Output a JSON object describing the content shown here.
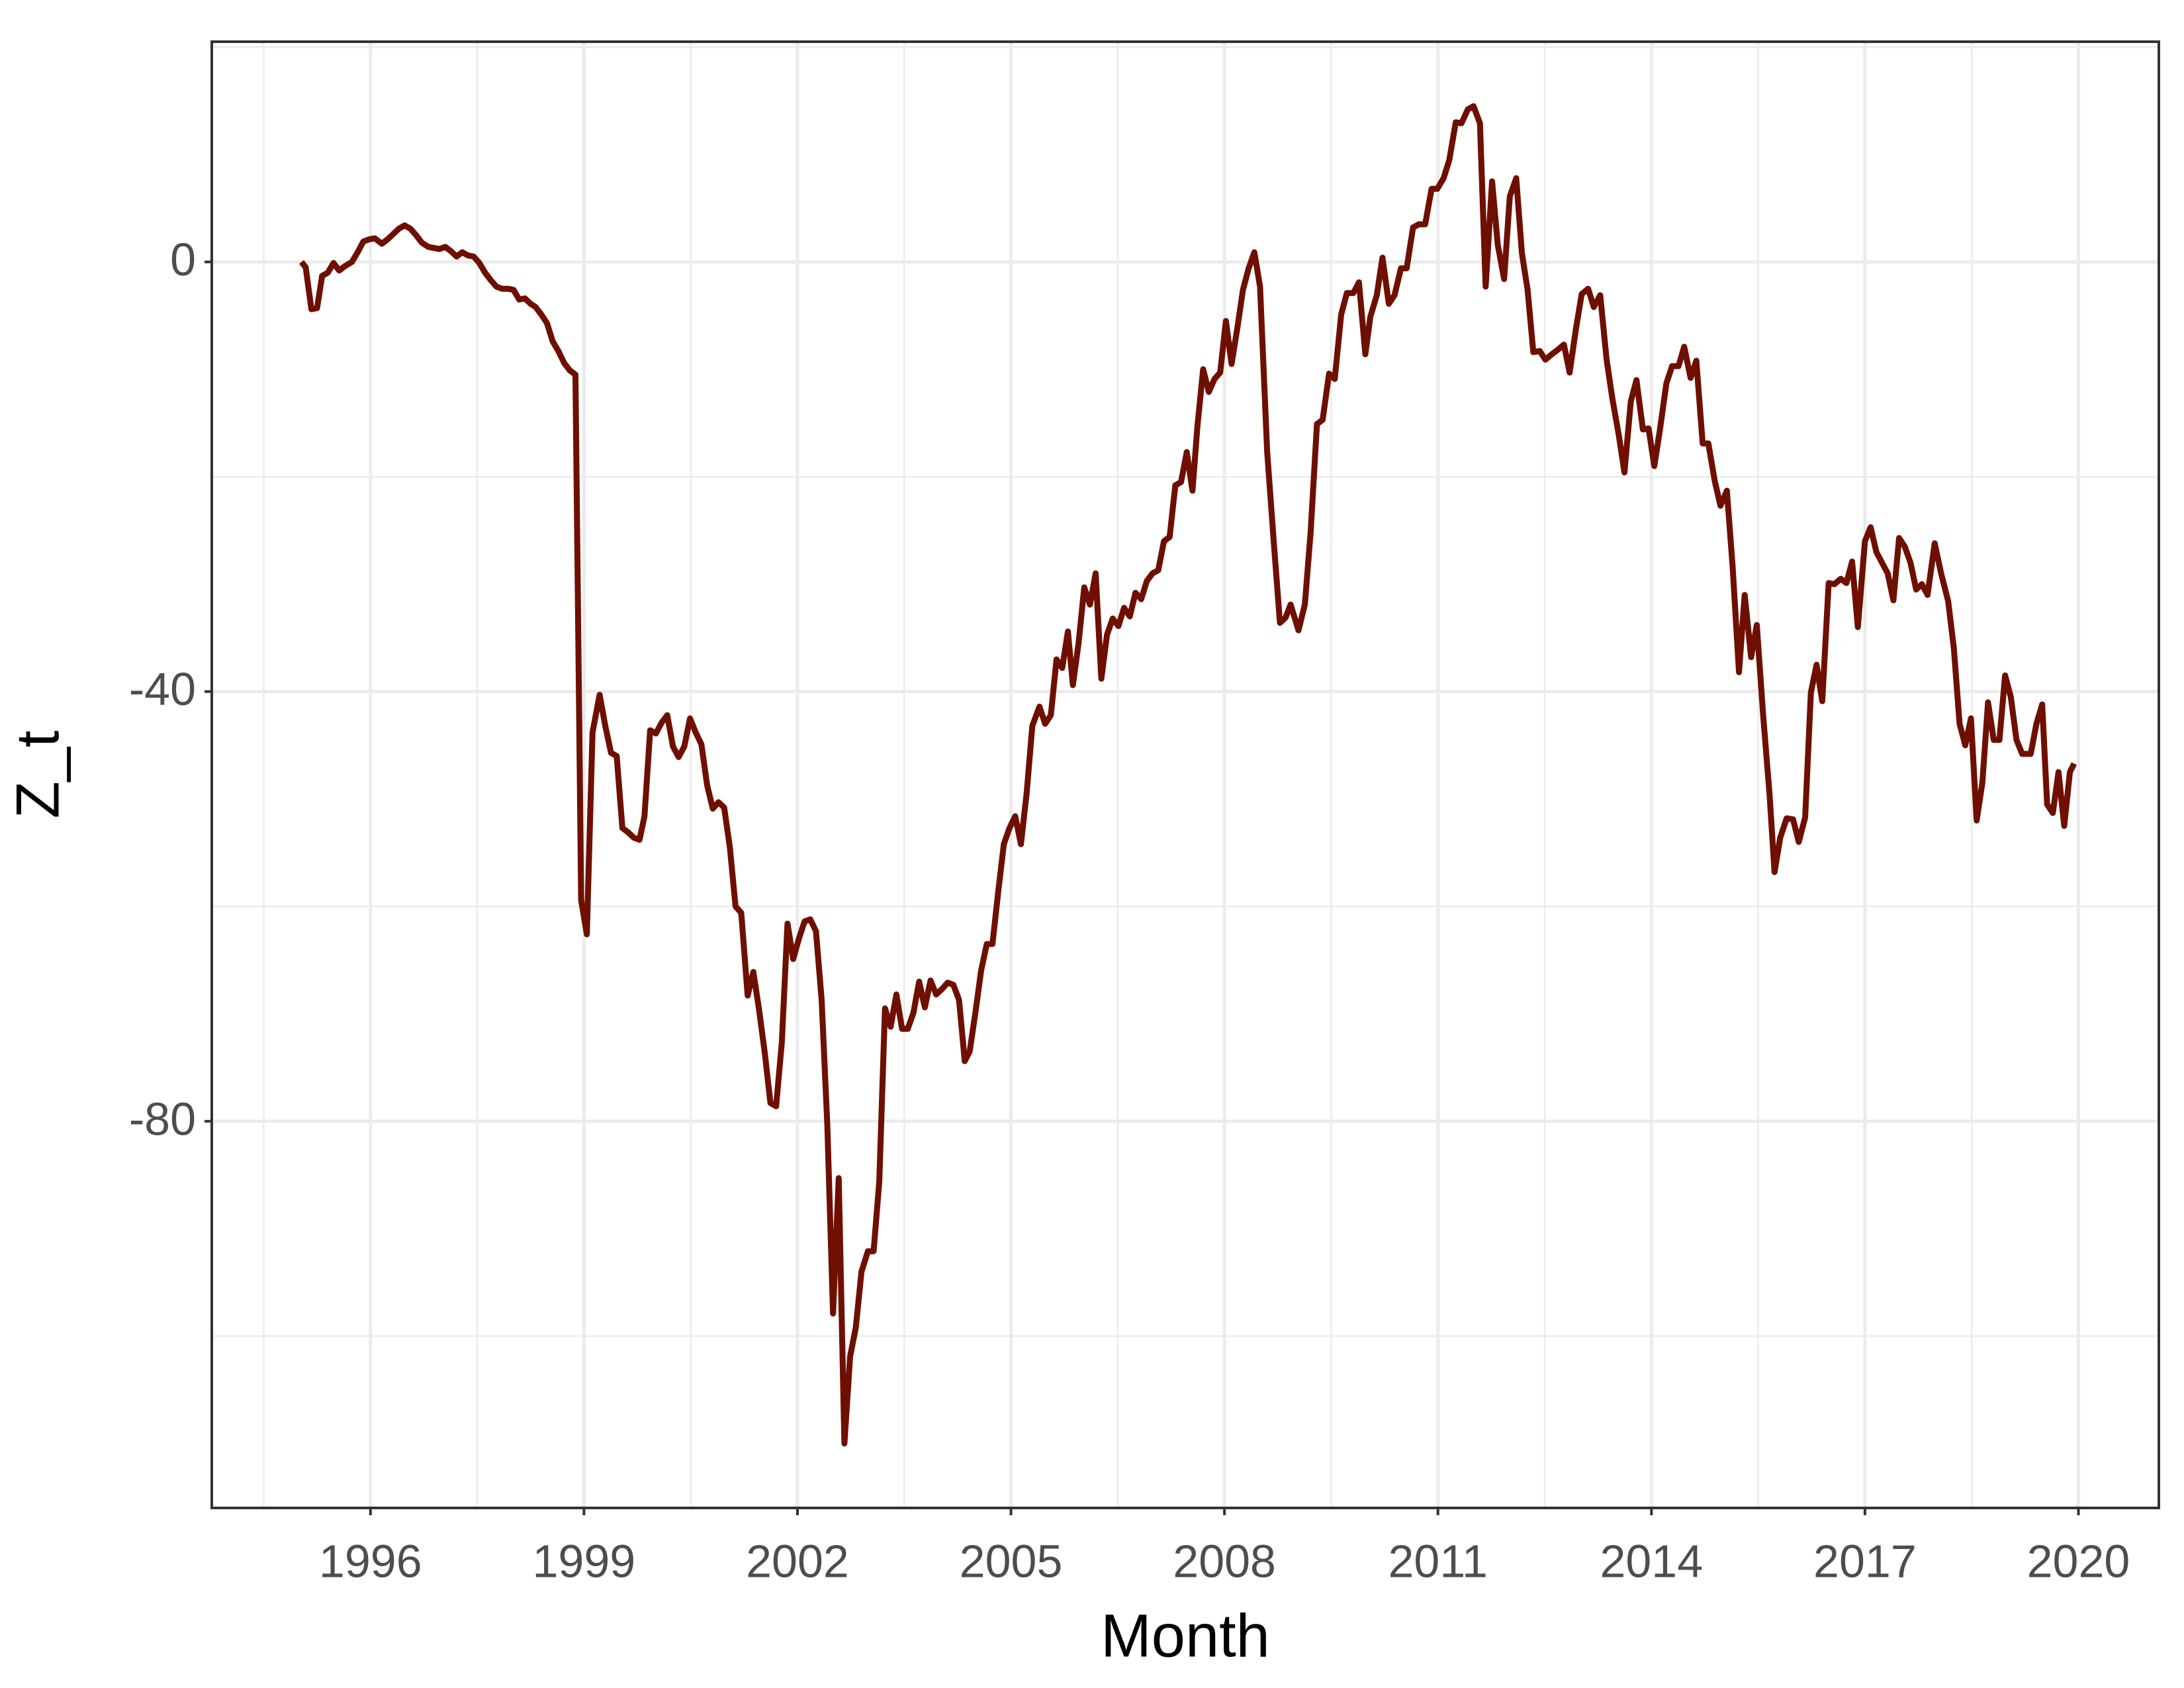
{
  "chart_data": {
    "type": "line",
    "x_label": "Month",
    "y_label": "Z_t",
    "color": "#6e0f00",
    "grid": true,
    "xlim": [
      1993.77,
      2021.13
    ],
    "xticks": [
      1996,
      1999,
      2002,
      2005,
      2008,
      2011,
      2014,
      2017,
      2020
    ],
    "ylim": [
      -116,
      20.5
    ],
    "yticks": [
      -80,
      -40,
      0
    ],
    "x": [
      1995.03,
      1995.09,
      1995.17,
      1995.25,
      1995.32,
      1995.4,
      1995.48,
      1995.56,
      1995.64,
      1995.74,
      1995.82,
      1995.9,
      1995.98,
      1996.06,
      1996.16,
      1996.24,
      1996.32,
      1996.4,
      1996.48,
      1996.56,
      1996.64,
      1996.72,
      1996.81,
      1996.89,
      1996.97,
      1997.05,
      1997.13,
      1997.21,
      1997.29,
      1997.37,
      1997.45,
      1997.53,
      1997.61,
      1997.69,
      1997.77,
      1997.85,
      1997.93,
      1998.01,
      1998.09,
      1998.17,
      1998.25,
      1998.32,
      1998.4,
      1998.48,
      1998.56,
      1998.64,
      1998.72,
      1998.8,
      1998.88,
      1998.96,
      1999.04,
      1999.12,
      1999.22,
      1999.3,
      1999.38,
      1999.46,
      1999.54,
      1999.62,
      1999.7,
      1999.78,
      1999.85,
      1999.93,
      2000.01,
      2000.09,
      2000.17,
      2000.25,
      2000.33,
      2000.41,
      2000.49,
      2000.57,
      2000.65,
      2000.73,
      2000.81,
      2000.89,
      2000.97,
      2001.05,
      2001.13,
      2001.21,
      2001.3,
      2001.38,
      2001.46,
      2001.54,
      2001.62,
      2001.7,
      2001.78,
      2001.86,
      2001.94,
      2002.02,
      2002.1,
      2002.18,
      2002.26,
      2002.34,
      2002.42,
      2002.5,
      2002.58,
      2002.66,
      2002.74,
      2002.82,
      2002.9,
      2002.99,
      2003.07,
      2003.15,
      2003.23,
      2003.31,
      2003.39,
      2003.47,
      2003.55,
      2003.63,
      2003.71,
      2003.79,
      2003.87,
      2003.95,
      2004.03,
      2004.11,
      2004.19,
      2004.27,
      2004.35,
      2004.42,
      2004.5,
      2004.58,
      2004.66,
      2004.74,
      2004.82,
      2004.9,
      2004.98,
      2005.06,
      2005.14,
      2005.22,
      2005.3,
      2005.4,
      2005.48,
      2005.56,
      2005.64,
      2005.72,
      2005.8,
      2005.87,
      2005.95,
      2006.03,
      2006.11,
      2006.19,
      2006.27,
      2006.35,
      2006.43,
      2006.51,
      2006.59,
      2006.67,
      2006.75,
      2006.83,
      2006.91,
      2006.99,
      2007.07,
      2007.15,
      2007.23,
      2007.31,
      2007.39,
      2007.47,
      2007.55,
      2007.62,
      2007.7,
      2007.78,
      2007.86,
      2007.94,
      2008.02,
      2008.1,
      2008.18,
      2008.26,
      2008.34,
      2008.42,
      2008.5,
      2008.6,
      2008.69,
      2008.78,
      2008.86,
      2008.93,
      2009.04,
      2009.13,
      2009.21,
      2009.3,
      2009.38,
      2009.47,
      2009.55,
      2009.64,
      2009.72,
      2009.81,
      2009.89,
      2009.98,
      2010.05,
      2010.14,
      2010.22,
      2010.31,
      2010.39,
      2010.48,
      2010.56,
      2010.65,
      2010.73,
      2010.82,
      2010.91,
      2010.99,
      2011.08,
      2011.16,
      2011.25,
      2011.33,
      2011.42,
      2011.5,
      2011.59,
      2011.67,
      2011.76,
      2011.84,
      2011.93,
      2012.01,
      2012.1,
      2012.18,
      2012.26,
      2012.34,
      2012.43,
      2012.51,
      2012.6,
      2012.68,
      2012.77,
      2012.85,
      2012.94,
      2013.02,
      2013.11,
      2013.19,
      2013.28,
      2013.37,
      2013.45,
      2013.54,
      2013.62,
      2013.71,
      2013.79,
      2013.88,
      2013.96,
      2014.04,
      2014.12,
      2014.21,
      2014.29,
      2014.38,
      2014.46,
      2014.55,
      2014.63,
      2014.72,
      2014.8,
      2014.89,
      2014.97,
      2015.06,
      2015.14,
      2015.23,
      2015.31,
      2015.4,
      2015.48,
      2015.57,
      2015.66,
      2015.73,
      2015.81,
      2015.9,
      2015.99,
      2016.07,
      2016.16,
      2016.24,
      2016.32,
      2016.4,
      2016.49,
      2016.57,
      2016.66,
      2016.74,
      2016.82,
      2016.9,
      2017.0,
      2017.08,
      2017.16,
      2017.32,
      2017.4,
      2017.48,
      2017.56,
      2017.64,
      2017.72,
      2017.8,
      2017.88,
      2017.98,
      2018.07,
      2018.17,
      2018.25,
      2018.33,
      2018.41,
      2018.49,
      2018.57,
      2018.65,
      2018.73,
      2018.81,
      2018.89,
      2018.97,
      2019.05,
      2019.13,
      2019.21,
      2019.33,
      2019.41,
      2019.49,
      2019.56,
      2019.64,
      2019.72,
      2019.8,
      2019.88,
      2019.94
    ],
    "values": [
      0,
      -0.5,
      -4.4,
      -4.3,
      -1.3,
      -1.0,
      -0.1,
      -0.8,
      -0.4,
      0,
      0.9,
      1.9,
      2.1,
      2.2,
      1.7,
      2.1,
      2.6,
      3.1,
      3.4,
      3.1,
      2.5,
      1.8,
      1.4,
      1.3,
      1.2,
      1.4,
      1.0,
      0.5,
      0.9,
      0.6,
      0.5,
      -0.1,
      -1.0,
      -1.7,
      -2.3,
      -2.5,
      -2.5,
      -2.6,
      -3.5,
      -3.4,
      -3.9,
      -4.2,
      -4.9,
      -5.7,
      -7.4,
      -8.3,
      -9.4,
      -10.1,
      -10.5,
      -59.4,
      -62.6,
      -43.8,
      -40.3,
      -43.2,
      -45.7,
      -46.0,
      -52.7,
      -53.1,
      -53.6,
      -53.8,
      -51.6,
      -43.6,
      -43.9,
      -42.9,
      -42.2,
      -45.1,
      -46.1,
      -45.1,
      -42.5,
      -43.8,
      -44.9,
      -48.7,
      -50.9,
      -50.3,
      -50.8,
      -54.5,
      -60.0,
      -60.6,
      -68.3,
      -66.1,
      -69.6,
      -73.6,
      -78.3,
      -78.6,
      -72.7,
      -61.6,
      -64.9,
      -63.0,
      -61.4,
      -61.2,
      -62.3,
      -68.7,
      -80.4,
      -97.9,
      -85.3,
      -110.0,
      -101.9,
      -99.2,
      -94.0,
      -92.1,
      -92.1,
      -85.6,
      -69.5,
      -71.2,
      -68.2,
      -71.4,
      -71.4,
      -69.9,
      -67.0,
      -69.4,
      -66.9,
      -68.2,
      -67.7,
      -67.1,
      -67.3,
      -68.7,
      -74.4,
      -73.5,
      -69.9,
      -66.0,
      -63.5,
      -63.5,
      -58.7,
      -54.2,
      -52.7,
      -51.6,
      -54.2,
      -49.5,
      -43.2,
      -41.4,
      -43.0,
      -42.2,
      -37.0,
      -37.8,
      -34.4,
      -39.4,
      -35.5,
      -30.3,
      -31.9,
      -29.0,
      -38.8,
      -34.7,
      -33.2,
      -33.9,
      -32.2,
      -33.0,
      -30.8,
      -31.4,
      -29.7,
      -29.0,
      -28.7,
      -26.0,
      -25.6,
      -20.8,
      -20.5,
      -17.7,
      -21.3,
      -15.3,
      -10.0,
      -12.1,
      -10.9,
      -10.3,
      -5.5,
      -9.5,
      -6.2,
      -2.6,
      -0.6,
      0.9,
      -2.3,
      -17.7,
      -25.8,
      -33.6,
      -33.1,
      -31.9,
      -34.3,
      -31.9,
      -25.2,
      -15.1,
      -14.7,
      -10.4,
      -10.9,
      -4.9,
      -2.9,
      -2.9,
      -1.9,
      -8.6,
      -5.1,
      -3.1,
      0.4,
      -3.9,
      -3.1,
      -0.6,
      -0.6,
      3.2,
      3.5,
      3.5,
      6.8,
      6.8,
      7.8,
      9.5,
      13.0,
      12.9,
      14.2,
      14.5,
      12.9,
      -2.3,
      7.5,
      1.6,
      -1.6,
      6.1,
      7.8,
      0.8,
      -2.6,
      -8.4,
      -8.3,
      -9.1,
      -8.6,
      -8.2,
      -7.7,
      -10.3,
      -6.2,
      -3.0,
      -2.5,
      -4.2,
      -3.1,
      -9.1,
      -12.7,
      -16.1,
      -19.6,
      -13.0,
      -11.0,
      -15.6,
      -15.5,
      -19.0,
      -15.6,
      -11.3,
      -9.7,
      -9.7,
      -7.9,
      -10.8,
      -9.2,
      -16.9,
      -16.9,
      -20.4,
      -22.7,
      -21.3,
      -28.3,
      -38.2,
      -31.0,
      -36.8,
      -33.8,
      -42.2,
      -49.6,
      -56.8,
      -53.6,
      -51.8,
      -51.9,
      -54.0,
      -51.7,
      -40.1,
      -37.5,
      -40.9,
      -29.9,
      -30.0,
      -29.5,
      -29.9,
      -27.9,
      -34.0,
      -26.0,
      -24.7,
      -27.0,
      -29.0,
      -31.5,
      -25.7,
      -26.5,
      -28.0,
      -30.5,
      -30.0,
      -31.0,
      -26.2,
      -29.0,
      -31.6,
      -36.0,
      -43.0,
      -45.0,
      -42.5,
      -52.0,
      -48.5,
      -41.0,
      -44.5,
      -44.5,
      -38.5,
      -40.5,
      -44.5,
      -45.8,
      -45.8,
      -43.0,
      -41.2,
      -50.5,
      -51.3,
      -47.5,
      -52.5,
      -47.5,
      -46.7
    ]
  }
}
